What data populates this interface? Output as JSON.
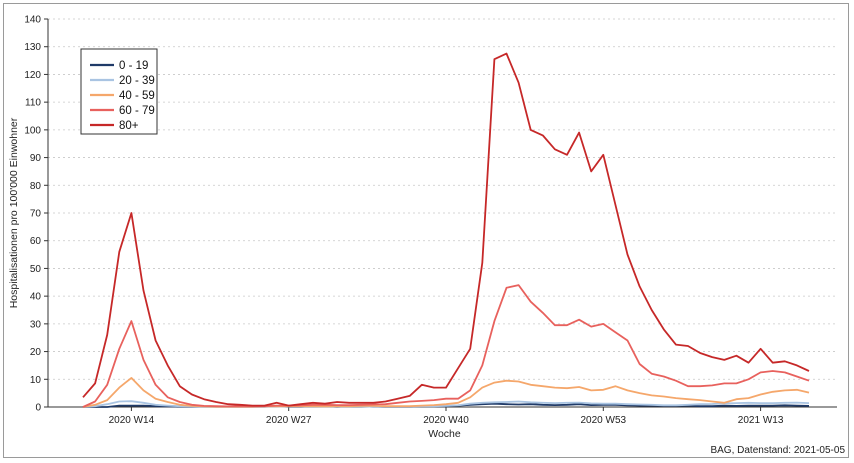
{
  "chart_data": {
    "type": "line",
    "xlabel": "Woche",
    "ylabel": "Hospitalisationen pro 100'000 Einwohner",
    "caption": "BAG, Datenstand: 2021-05-05",
    "ylim": [
      0,
      140
    ],
    "yticks": [
      0,
      10,
      20,
      30,
      40,
      50,
      60,
      70,
      80,
      90,
      100,
      110,
      120,
      130,
      140
    ],
    "xticks": [
      {
        "week_index": 14,
        "label": "2020 W14"
      },
      {
        "week_index": 27,
        "label": "2020 W27"
      },
      {
        "week_index": 40,
        "label": "2020 W40"
      },
      {
        "week_index": 53,
        "label": "2020 W53"
      },
      {
        "week_index": 66,
        "label": "2021 W13"
      }
    ],
    "x_week_start": 10,
    "grid": "horizontal-dotted",
    "legend_position": "top-left",
    "series": [
      {
        "name": "0 - 19",
        "color": "#1f3a68",
        "values": [
          0,
          0,
          0,
          0.5,
          0.5,
          0.5,
          0.3,
          0.2,
          0.1,
          0.1,
          0.1,
          0.1,
          0.1,
          0.1,
          0.1,
          0.1,
          0.2,
          0.1,
          0.1,
          0.2,
          0.2,
          0.1,
          0.2,
          0.2,
          0.1,
          0.1,
          0.1,
          0.1,
          0.2,
          0.2,
          0.3,
          0.5,
          0.8,
          1.0,
          1.2,
          1.0,
          0.9,
          1.0,
          0.8,
          0.7,
          0.8,
          1.0,
          0.7,
          0.8,
          0.8,
          0.6,
          0.5,
          0.5,
          0.4,
          0.4,
          0.5,
          0.3,
          0.3,
          0.5,
          0.4,
          0.5,
          0.5,
          0.5,
          0.6,
          0.5,
          0.4
        ]
      },
      {
        "name": "20 - 39",
        "color": "#a9c4e2",
        "values": [
          0,
          0.3,
          1.0,
          2.0,
          2.1,
          1.5,
          0.8,
          0.5,
          0.3,
          0.2,
          0.1,
          0.1,
          0.1,
          0.1,
          0.1,
          0.1,
          0.1,
          0.2,
          0.2,
          0.2,
          0.2,
          0.2,
          0.2,
          0.2,
          0.1,
          0.2,
          0.2,
          0.2,
          0.3,
          0.3,
          0.4,
          0.6,
          1.2,
          1.5,
          1.7,
          1.8,
          2.0,
          1.7,
          1.5,
          1.4,
          1.5,
          1.6,
          1.3,
          1.2,
          1.2,
          1.0,
          0.9,
          0.8,
          0.6,
          0.6,
          0.8,
          1.0,
          1.1,
          1.3,
          1.4,
          1.5,
          1.4,
          1.4,
          1.5,
          1.6,
          1.4
        ]
      },
      {
        "name": "40 - 59",
        "color": "#f5a76b",
        "values": [
          0,
          0.8,
          2.5,
          7.0,
          10.5,
          6.0,
          3.0,
          1.8,
          0.8,
          0.4,
          0.2,
          0.1,
          0.1,
          0.1,
          0.1,
          0.2,
          0.2,
          0.3,
          0.3,
          0.3,
          0.2,
          0.3,
          0.3,
          0.4,
          0.4,
          0.3,
          0.3,
          0.3,
          0.5,
          0.7,
          1.0,
          1.5,
          3.5,
          7.0,
          8.8,
          9.5,
          9.2,
          8.0,
          7.5,
          7.0,
          6.8,
          7.2,
          6.0,
          6.2,
          7.5,
          6.0,
          5.0,
          4.2,
          3.8,
          3.2,
          2.8,
          2.5,
          2.0,
          1.5,
          2.8,
          3.2,
          4.5,
          5.5,
          6.0,
          6.2,
          5.2
        ]
      },
      {
        "name": "60 - 79",
        "color": "#e8615d",
        "values": [
          0,
          2.0,
          8.0,
          21.0,
          31.0,
          17.0,
          8.0,
          3.5,
          1.8,
          0.8,
          0.4,
          0.3,
          0.2,
          0.2,
          0.2,
          0.3,
          0.5,
          0.5,
          0.6,
          0.8,
          0.8,
          0.7,
          0.7,
          0.8,
          0.9,
          1.0,
          1.5,
          2.0,
          2.2,
          2.5,
          3.0,
          3.0,
          6.0,
          15.0,
          31.0,
          43.0,
          44.0,
          38.0,
          34.0,
          29.5,
          29.5,
          31.5,
          29.0,
          30.0,
          27.0,
          24.0,
          15.5,
          12.0,
          11.0,
          9.5,
          7.5,
          7.5,
          7.8,
          8.5,
          8.5,
          10.0,
          12.5,
          13.0,
          12.5,
          11.0,
          9.5
        ]
      },
      {
        "name": "80+",
        "color": "#c62828",
        "values": [
          3.5,
          8.5,
          26.0,
          56.0,
          70.0,
          42.0,
          24.0,
          15.0,
          7.5,
          4.5,
          2.8,
          1.8,
          1.0,
          0.8,
          0.5,
          0.5,
          1.5,
          0.5,
          1.0,
          1.5,
          1.2,
          1.8,
          1.5,
          1.5,
          1.5,
          2.0,
          3.0,
          4.0,
          8.0,
          7.0,
          7.0,
          14.0,
          21.0,
          52.0,
          125.5,
          127.5,
          117.0,
          100.0,
          98.0,
          93.0,
          91.0,
          99.0,
          85.0,
          91.0,
          73.0,
          55.0,
          43.5,
          35.0,
          28.0,
          22.5,
          22.0,
          19.5,
          18.0,
          17.0,
          18.5,
          16.0,
          21.0,
          16.0,
          16.5,
          15.0,
          13.0
        ]
      }
    ]
  }
}
